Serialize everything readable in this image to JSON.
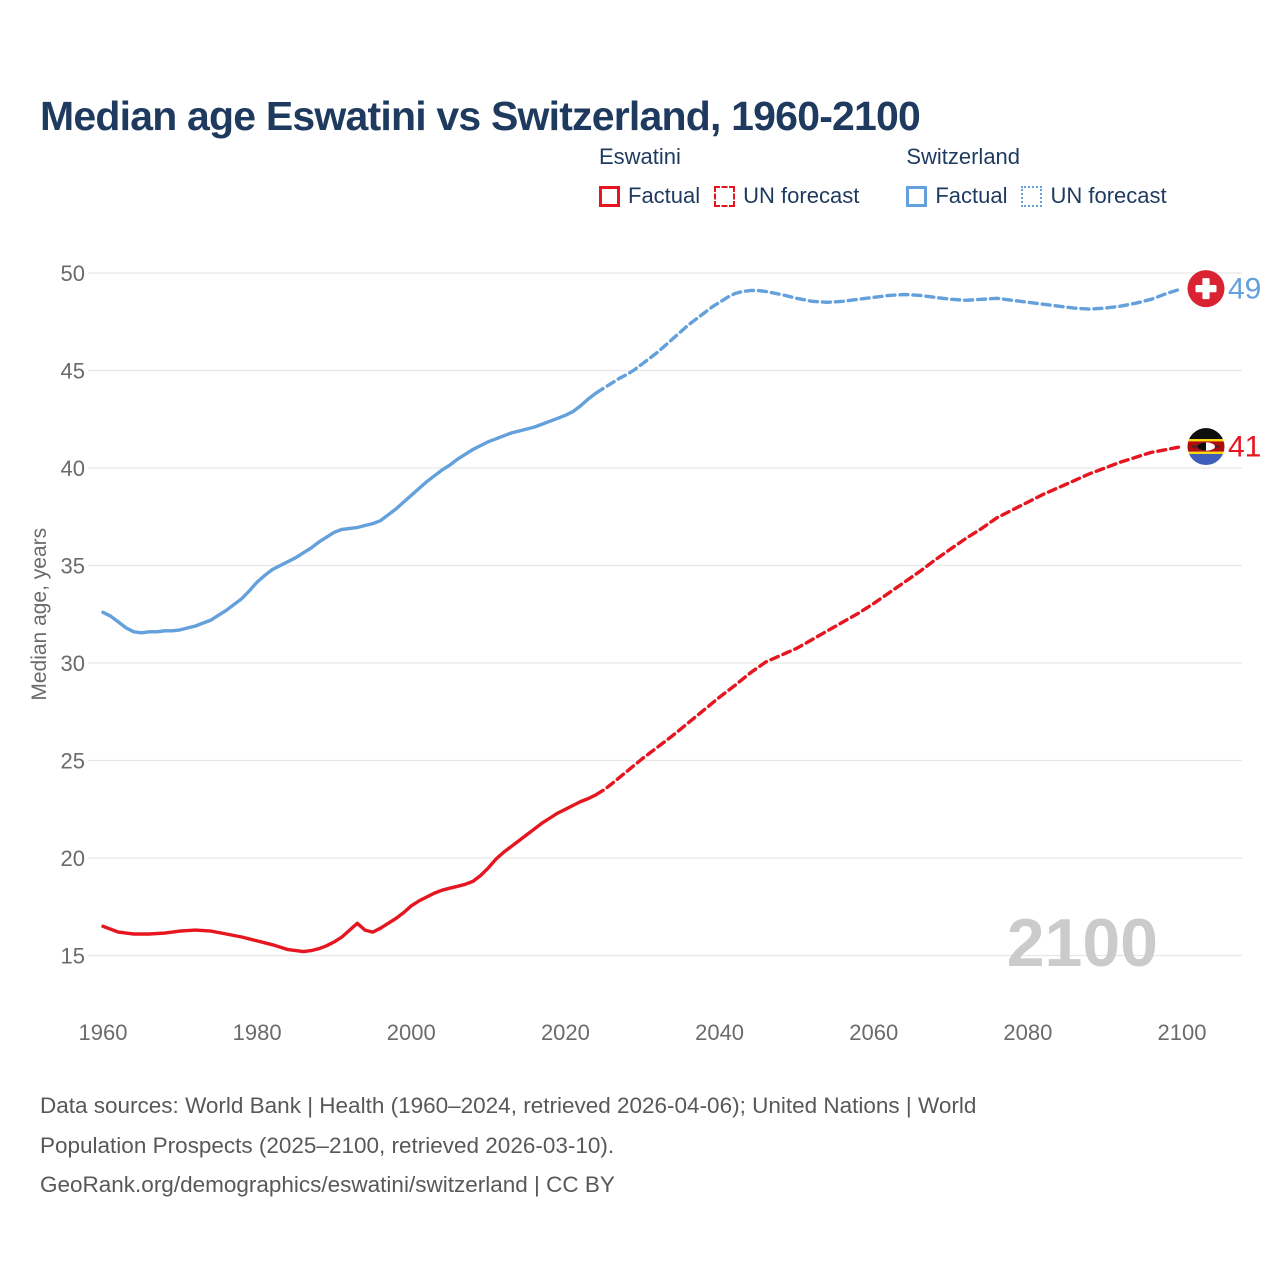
{
  "title": "Median age Eswatini vs Switzerland, 1960-2100",
  "legend": {
    "groups": [
      {
        "country": "Eswatini",
        "factual_label": "Factual",
        "forecast_label": "UN forecast"
      },
      {
        "country": "Switzerland",
        "factual_label": "Factual",
        "forecast_label": "UN forecast"
      }
    ]
  },
  "colors": {
    "eswatini": "#e5161f",
    "switzerland": "#64a0dc",
    "title_text": "#1e3a5f",
    "axis_text": "#6b6b6b",
    "gridline": "#e7e7e7",
    "watermark": "#cbcbcb",
    "footer_text": "#58585a",
    "swiss_flag_red": "#da2332",
    "eswatini_flag_blue": "#3e5eb9",
    "eswatini_flag_yellow": "#ffd900",
    "eswatini_flag_crimson": "#b10c0c"
  },
  "chart_data": {
    "type": "line",
    "title": "Median age Eswatini vs Switzerland, 1960-2100",
    "xlabel": "",
    "ylabel": "Median age, years",
    "xlim": [
      1960,
      2100
    ],
    "ylim": [
      14.5,
      51
    ],
    "x_ticks": [
      1960,
      1980,
      2000,
      2020,
      2040,
      2060,
      2080,
      2100
    ],
    "y_ticks": [
      15,
      20,
      25,
      30,
      35,
      40,
      45,
      50
    ],
    "grid": "horizontal",
    "legend_position": "top",
    "watermark": "2100",
    "series": [
      {
        "name": "Eswatini Factual",
        "style": "solid",
        "color": "#e5161f",
        "points": [
          [
            1960,
            16.5
          ],
          [
            1961,
            16.35
          ],
          [
            1962,
            16.2
          ],
          [
            1963,
            16.15
          ],
          [
            1964,
            16.1
          ],
          [
            1966,
            16.1
          ],
          [
            1968,
            16.15
          ],
          [
            1970,
            16.25
          ],
          [
            1972,
            16.3
          ],
          [
            1974,
            16.25
          ],
          [
            1976,
            16.1
          ],
          [
            1978,
            15.95
          ],
          [
            1980,
            15.75
          ],
          [
            1982,
            15.55
          ],
          [
            1984,
            15.3
          ],
          [
            1985,
            15.25
          ],
          [
            1986,
            15.2
          ],
          [
            1987,
            15.25
          ],
          [
            1988,
            15.35
          ],
          [
            1989,
            15.5
          ],
          [
            1990,
            15.7
          ],
          [
            1991,
            15.95
          ],
          [
            1992,
            16.3
          ],
          [
            1993,
            16.65
          ],
          [
            1994,
            16.3
          ],
          [
            1995,
            16.2
          ],
          [
            1996,
            16.4
          ],
          [
            1997,
            16.65
          ],
          [
            1998,
            16.9
          ],
          [
            1999,
            17.2
          ],
          [
            2000,
            17.55
          ],
          [
            2001,
            17.8
          ],
          [
            2002,
            18.0
          ],
          [
            2003,
            18.2
          ],
          [
            2004,
            18.35
          ],
          [
            2005,
            18.45
          ],
          [
            2006,
            18.55
          ],
          [
            2007,
            18.65
          ],
          [
            2008,
            18.8
          ],
          [
            2009,
            19.1
          ],
          [
            2010,
            19.5
          ],
          [
            2011,
            19.95
          ],
          [
            2012,
            20.3
          ],
          [
            2013,
            20.6
          ],
          [
            2014,
            20.9
          ],
          [
            2015,
            21.2
          ],
          [
            2016,
            21.5
          ],
          [
            2017,
            21.8
          ],
          [
            2018,
            22.05
          ],
          [
            2019,
            22.3
          ],
          [
            2020,
            22.5
          ],
          [
            2021,
            22.7
          ],
          [
            2022,
            22.9
          ],
          [
            2023,
            23.05
          ],
          [
            2024,
            23.25
          ]
        ]
      },
      {
        "name": "Eswatini UN forecast",
        "style": "dashed",
        "color": "#e5161f",
        "points": [
          [
            2024,
            23.25
          ],
          [
            2025,
            23.5
          ],
          [
            2026,
            23.8
          ],
          [
            2028,
            24.45
          ],
          [
            2030,
            25.1
          ],
          [
            2032,
            25.7
          ],
          [
            2034,
            26.3
          ],
          [
            2036,
            26.95
          ],
          [
            2038,
            27.6
          ],
          [
            2040,
            28.25
          ],
          [
            2042,
            28.85
          ],
          [
            2044,
            29.5
          ],
          [
            2046,
            30.05
          ],
          [
            2048,
            30.4
          ],
          [
            2050,
            30.75
          ],
          [
            2052,
            31.2
          ],
          [
            2054,
            31.65
          ],
          [
            2056,
            32.1
          ],
          [
            2058,
            32.55
          ],
          [
            2060,
            33.05
          ],
          [
            2062,
            33.6
          ],
          [
            2064,
            34.15
          ],
          [
            2066,
            34.7
          ],
          [
            2068,
            35.3
          ],
          [
            2070,
            35.85
          ],
          [
            2072,
            36.4
          ],
          [
            2074,
            36.9
          ],
          [
            2076,
            37.45
          ],
          [
            2078,
            37.85
          ],
          [
            2080,
            38.25
          ],
          [
            2082,
            38.65
          ],
          [
            2084,
            39.0
          ],
          [
            2086,
            39.35
          ],
          [
            2088,
            39.7
          ],
          [
            2090,
            40.0
          ],
          [
            2092,
            40.3
          ],
          [
            2094,
            40.55
          ],
          [
            2096,
            40.8
          ],
          [
            2098,
            40.95
          ],
          [
            2100,
            41.1
          ]
        ]
      },
      {
        "name": "Switzerland Factual",
        "style": "solid",
        "color": "#64a0dc",
        "points": [
          [
            1960,
            32.6
          ],
          [
            1961,
            32.4
          ],
          [
            1962,
            32.1
          ],
          [
            1963,
            31.8
          ],
          [
            1964,
            31.6
          ],
          [
            1965,
            31.55
          ],
          [
            1966,
            31.6
          ],
          [
            1967,
            31.6
          ],
          [
            1968,
            31.65
          ],
          [
            1969,
            31.65
          ],
          [
            1970,
            31.7
          ],
          [
            1971,
            31.8
          ],
          [
            1972,
            31.9
          ],
          [
            1973,
            32.05
          ],
          [
            1974,
            32.2
          ],
          [
            1975,
            32.45
          ],
          [
            1976,
            32.7
          ],
          [
            1977,
            33.0
          ],
          [
            1978,
            33.3
          ],
          [
            1979,
            33.7
          ],
          [
            1980,
            34.15
          ],
          [
            1981,
            34.5
          ],
          [
            1982,
            34.8
          ],
          [
            1983,
            35.0
          ],
          [
            1984,
            35.2
          ],
          [
            1985,
            35.4
          ],
          [
            1986,
            35.65
          ],
          [
            1987,
            35.9
          ],
          [
            1988,
            36.2
          ],
          [
            1989,
            36.45
          ],
          [
            1990,
            36.7
          ],
          [
            1991,
            36.85
          ],
          [
            1992,
            36.9
          ],
          [
            1993,
            36.95
          ],
          [
            1994,
            37.05
          ],
          [
            1995,
            37.15
          ],
          [
            1996,
            37.3
          ],
          [
            1997,
            37.6
          ],
          [
            1998,
            37.9
          ],
          [
            1999,
            38.25
          ],
          [
            2000,
            38.6
          ],
          [
            2001,
            38.95
          ],
          [
            2002,
            39.3
          ],
          [
            2003,
            39.6
          ],
          [
            2004,
            39.9
          ],
          [
            2005,
            40.15
          ],
          [
            2006,
            40.45
          ],
          [
            2007,
            40.7
          ],
          [
            2008,
            40.95
          ],
          [
            2009,
            41.15
          ],
          [
            2010,
            41.35
          ],
          [
            2011,
            41.5
          ],
          [
            2012,
            41.65
          ],
          [
            2013,
            41.8
          ],
          [
            2014,
            41.9
          ],
          [
            2015,
            42.0
          ],
          [
            2016,
            42.1
          ],
          [
            2017,
            42.25
          ],
          [
            2018,
            42.4
          ],
          [
            2019,
            42.55
          ],
          [
            2020,
            42.7
          ],
          [
            2021,
            42.9
          ],
          [
            2022,
            43.2
          ],
          [
            2023,
            43.55
          ],
          [
            2024,
            43.85
          ]
        ]
      },
      {
        "name": "Switzerland UN forecast",
        "style": "dashed",
        "color": "#64a0dc",
        "points": [
          [
            2024,
            43.85
          ],
          [
            2025,
            44.1
          ],
          [
            2026,
            44.35
          ],
          [
            2027,
            44.6
          ],
          [
            2028,
            44.8
          ],
          [
            2029,
            45.05
          ],
          [
            2030,
            45.35
          ],
          [
            2031,
            45.65
          ],
          [
            2032,
            45.95
          ],
          [
            2033,
            46.3
          ],
          [
            2034,
            46.65
          ],
          [
            2035,
            47.0
          ],
          [
            2036,
            47.35
          ],
          [
            2037,
            47.65
          ],
          [
            2038,
            47.95
          ],
          [
            2039,
            48.25
          ],
          [
            2040,
            48.5
          ],
          [
            2041,
            48.75
          ],
          [
            2042,
            48.95
          ],
          [
            2043,
            49.05
          ],
          [
            2044,
            49.1
          ],
          [
            2045,
            49.1
          ],
          [
            2046,
            49.05
          ],
          [
            2048,
            48.9
          ],
          [
            2050,
            48.7
          ],
          [
            2052,
            48.55
          ],
          [
            2054,
            48.5
          ],
          [
            2056,
            48.55
          ],
          [
            2058,
            48.65
          ],
          [
            2060,
            48.75
          ],
          [
            2062,
            48.85
          ],
          [
            2064,
            48.9
          ],
          [
            2066,
            48.85
          ],
          [
            2068,
            48.75
          ],
          [
            2070,
            48.65
          ],
          [
            2072,
            48.6
          ],
          [
            2074,
            48.65
          ],
          [
            2076,
            48.7
          ],
          [
            2078,
            48.6
          ],
          [
            2080,
            48.5
          ],
          [
            2082,
            48.4
          ],
          [
            2084,
            48.3
          ],
          [
            2086,
            48.2
          ],
          [
            2088,
            48.15
          ],
          [
            2090,
            48.2
          ],
          [
            2092,
            48.3
          ],
          [
            2094,
            48.45
          ],
          [
            2096,
            48.65
          ],
          [
            2098,
            48.95
          ],
          [
            2100,
            49.2
          ]
        ]
      }
    ],
    "end_markers": [
      {
        "flag": "switzerland",
        "value_label": "49",
        "value": 49.2,
        "color": "#64a0dc"
      },
      {
        "flag": "eswatini",
        "value_label": "41",
        "value": 41.1,
        "color": "#e5161f"
      }
    ]
  },
  "footer": {
    "lines": [
      "Data sources: World Bank | Health (1960–2024, retrieved 2026-04-06); United Nations | World",
      "Population Prospects (2025–2100, retrieved 2026-03-10).",
      "GeoRank.org/demographics/eswatini/switzerland | CC BY"
    ]
  }
}
